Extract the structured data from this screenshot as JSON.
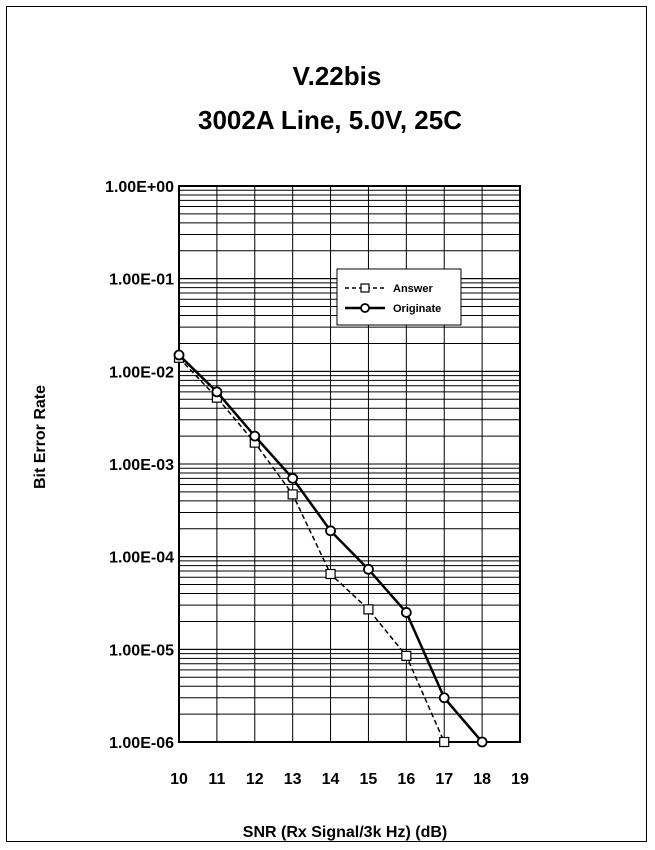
{
  "chart_data": {
    "type": "line",
    "title_lines": [
      "V.22bis",
      "3002A Line, 5.0V, 25C"
    ],
    "xlabel": "SNR (Rx Signal/3k Hz) (dB)",
    "ylabel": "Bit Error Rate",
    "xlim": [
      10,
      19
    ],
    "ylim": [
      1e-06,
      1
    ],
    "yscale": "log",
    "grid": true,
    "legend_position": "top-right",
    "x_ticks": [
      "10",
      "11",
      "12",
      "13",
      "14",
      "15",
      "16",
      "17",
      "18",
      "19"
    ],
    "x_tick_values": [
      10,
      11,
      12,
      13,
      14,
      15,
      16,
      17,
      18,
      19
    ],
    "y_ticks": [
      "1.00E+00",
      "1.00E-01",
      "1.00E-02",
      "1.00E-03",
      "1.00E-04",
      "1.00E-05",
      "1.00E-06"
    ],
    "y_tick_values": [
      1,
      0.1,
      0.01,
      0.001,
      0.0001,
      1e-05,
      1e-06
    ],
    "series": [
      {
        "name": "Answer",
        "style": "dashed",
        "marker": "square",
        "color": "#000000",
        "x": [
          10,
          11,
          12,
          13,
          14,
          15,
          16,
          17
        ],
        "y": [
          0.014,
          0.0052,
          0.0017,
          0.00047,
          6.5e-05,
          2.7e-05,
          8.5e-06,
          1e-06
        ]
      },
      {
        "name": "Originate",
        "style": "solid",
        "marker": "circle",
        "color": "#000000",
        "x": [
          10,
          11,
          12,
          13,
          14,
          15,
          16,
          17,
          18
        ],
        "y": [
          0.015,
          0.006,
          0.002,
          0.0007,
          0.00019,
          7.3e-05,
          2.5e-05,
          3e-06,
          1e-06
        ]
      }
    ]
  }
}
